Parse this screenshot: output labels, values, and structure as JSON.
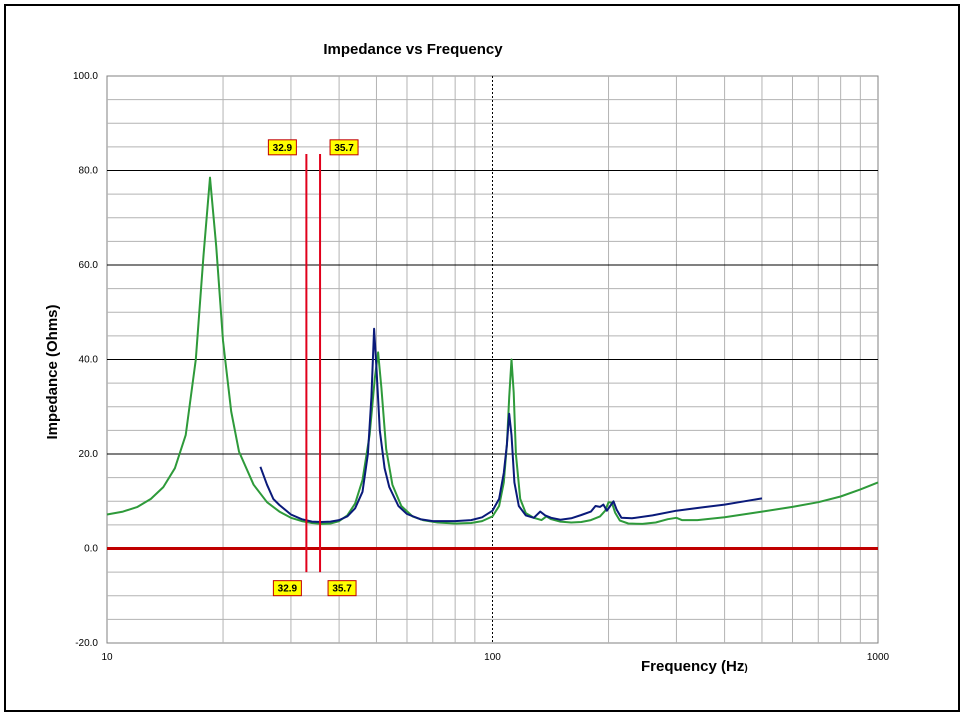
{
  "chart_data": {
    "type": "line",
    "title": "Impedance vs Frequency",
    "xlabel": "Frequency (Hz)",
    "xlabel_main": "Frequency (Hz",
    "xlabel_end": ")",
    "ylabel": "Impedance (Ohms)",
    "x_scale": "log",
    "xlim": [
      10,
      1000
    ],
    "ylim": [
      -20,
      100
    ],
    "x_tick_labels": [
      "10",
      "100",
      "1000"
    ],
    "x_ticks": [
      10,
      100,
      1000
    ],
    "y_ticks": [
      -20,
      0,
      20,
      40,
      60,
      80,
      100
    ],
    "y_tick_labels": [
      "-20.0",
      "0.0",
      "20.0",
      "40.0",
      "60.0",
      "80.0",
      "100.0"
    ],
    "grid": true,
    "colors": {
      "grid": "#b3b3b3",
      "major_grid": "#000000",
      "zero_line": "#c00000",
      "marker_line": "#e0001b",
      "marker_fill": "#ffff00",
      "marker_border": "#c00000"
    },
    "series": [
      {
        "color": "#2e9a3a",
        "points": [
          [
            10,
            7.2
          ],
          [
            11,
            7.8
          ],
          [
            12,
            8.8
          ],
          [
            13,
            10.5
          ],
          [
            14,
            13.0
          ],
          [
            15,
            17.0
          ],
          [
            16,
            24.0
          ],
          [
            17,
            40.0
          ],
          [
            17.8,
            62.0
          ],
          [
            18.5,
            78.5
          ],
          [
            19.2,
            64.0
          ],
          [
            20,
            44.0
          ],
          [
            21,
            29.0
          ],
          [
            22,
            20.5
          ],
          [
            24,
            13.5
          ],
          [
            26,
            9.8
          ],
          [
            28,
            7.8
          ],
          [
            30,
            6.5
          ],
          [
            32,
            5.8
          ],
          [
            34,
            5.4
          ],
          [
            36,
            5.2
          ],
          [
            38,
            5.3
          ],
          [
            40,
            5.8
          ],
          [
            42,
            7.0
          ],
          [
            44,
            9.5
          ],
          [
            46,
            14.5
          ],
          [
            48,
            24.0
          ],
          [
            49.5,
            36.0
          ],
          [
            50.5,
            41.5
          ],
          [
            51.5,
            34.0
          ],
          [
            53,
            21.0
          ],
          [
            55,
            13.5
          ],
          [
            58,
            9.0
          ],
          [
            62,
            6.8
          ],
          [
            66,
            6.0
          ],
          [
            72,
            5.5
          ],
          [
            80,
            5.3
          ],
          [
            88,
            5.4
          ],
          [
            94,
            5.8
          ],
          [
            100,
            6.8
          ],
          [
            104,
            9.0
          ],
          [
            107,
            14.0
          ],
          [
            109,
            22.0
          ],
          [
            110.5,
            32.0
          ],
          [
            112,
            40.0
          ],
          [
            113.5,
            33.0
          ],
          [
            115,
            20.0
          ],
          [
            118,
            10.5
          ],
          [
            122,
            7.5
          ],
          [
            128,
            6.5
          ],
          [
            134,
            6.0
          ],
          [
            138,
            6.8
          ],
          [
            142,
            6.2
          ],
          [
            150,
            5.7
          ],
          [
            160,
            5.5
          ],
          [
            170,
            5.6
          ],
          [
            180,
            6.0
          ],
          [
            190,
            6.8
          ],
          [
            196,
            8.0
          ],
          [
            200,
            9.8
          ],
          [
            204,
            9.7
          ],
          [
            208,
            7.6
          ],
          [
            214,
            5.9
          ],
          [
            225,
            5.3
          ],
          [
            245,
            5.2
          ],
          [
            265,
            5.5
          ],
          [
            285,
            6.2
          ],
          [
            300,
            6.5
          ],
          [
            310,
            6.0
          ],
          [
            340,
            6.0
          ],
          [
            400,
            6.6
          ],
          [
            500,
            7.8
          ],
          [
            600,
            8.8
          ],
          [
            700,
            9.8
          ],
          [
            800,
            11.0
          ],
          [
            900,
            12.5
          ],
          [
            1000,
            14.0
          ]
        ]
      },
      {
        "color": "#0a1a7a",
        "points": [
          [
            25,
            17.3
          ],
          [
            26,
            13.5
          ],
          [
            27,
            10.5
          ],
          [
            28,
            9.2
          ],
          [
            30,
            7.2
          ],
          [
            32,
            6.2
          ],
          [
            34,
            5.7
          ],
          [
            36,
            5.6
          ],
          [
            38,
            5.7
          ],
          [
            40,
            6.0
          ],
          [
            42,
            6.8
          ],
          [
            44,
            8.5
          ],
          [
            46,
            12.0
          ],
          [
            47.5,
            20.0
          ],
          [
            48.5,
            32.0
          ],
          [
            49.3,
            46.5
          ],
          [
            50,
            38.0
          ],
          [
            51,
            25.0
          ],
          [
            52.5,
            17.0
          ],
          [
            54,
            13.0
          ],
          [
            57,
            9.0
          ],
          [
            60,
            7.3
          ],
          [
            65,
            6.2
          ],
          [
            70,
            5.8
          ],
          [
            80,
            5.8
          ],
          [
            88,
            6.0
          ],
          [
            94,
            6.6
          ],
          [
            100,
            8.0
          ],
          [
            104,
            10.5
          ],
          [
            107,
            16.0
          ],
          [
            109,
            22.0
          ],
          [
            110.5,
            28.5
          ],
          [
            112,
            24.0
          ],
          [
            114,
            14.0
          ],
          [
            117,
            9.0
          ],
          [
            122,
            7.0
          ],
          [
            128,
            6.5
          ],
          [
            133,
            7.8
          ],
          [
            137,
            7.0
          ],
          [
            142,
            6.5
          ],
          [
            150,
            6.1
          ],
          [
            160,
            6.4
          ],
          [
            170,
            7.1
          ],
          [
            180,
            7.8
          ],
          [
            185,
            9.0
          ],
          [
            190,
            8.8
          ],
          [
            194,
            9.3
          ],
          [
            198,
            8.0
          ],
          [
            202,
            9.0
          ],
          [
            206,
            10.0
          ],
          [
            210,
            8.2
          ],
          [
            216,
            6.5
          ],
          [
            230,
            6.4
          ],
          [
            260,
            7.0
          ],
          [
            300,
            8.0
          ],
          [
            350,
            8.7
          ],
          [
            400,
            9.3
          ],
          [
            450,
            10.0
          ],
          [
            500,
            10.6
          ]
        ]
      }
    ],
    "markers": [
      {
        "x": 32.9,
        "label": "32.9"
      },
      {
        "x": 35.7,
        "label": "35.7"
      }
    ],
    "legend": "none"
  }
}
